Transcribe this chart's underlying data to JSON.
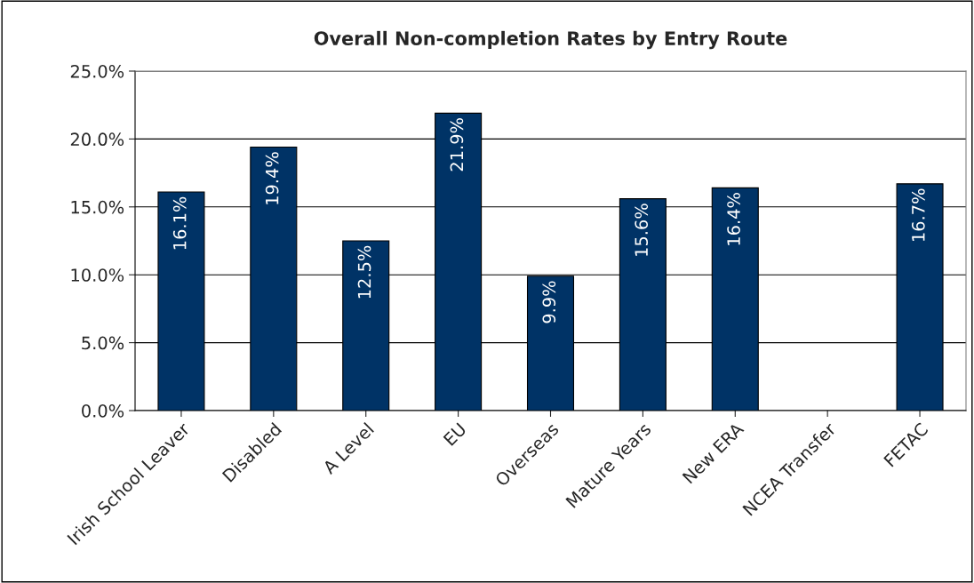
{
  "chart_data": {
    "type": "bar",
    "title": "Overall Non-completion Rates by Entry Route",
    "categories": [
      "Irish School Leaver",
      "Disabled",
      "A Level",
      "EU",
      "Overseas",
      "Mature Years",
      "New ERA",
      "NCEA Transfer",
      "FETAC"
    ],
    "values": [
      16.1,
      19.4,
      12.5,
      21.9,
      9.9,
      15.6,
      16.4,
      null,
      16.7
    ],
    "value_labels": [
      "16.1%",
      "19.4%",
      "12.5%",
      "21.9%",
      "9.9%",
      "15.6%",
      "16.4%",
      null,
      "16.7%"
    ],
    "color": "#003366",
    "ylim": [
      0,
      25
    ],
    "yticks": [
      {
        "value": 0,
        "label": "0.0%"
      },
      {
        "value": 5,
        "label": "5.0%"
      },
      {
        "value": 10,
        "label": "10.0%"
      },
      {
        "value": 15,
        "label": "15.0%"
      },
      {
        "value": 20,
        "label": "20.0%"
      },
      {
        "value": 25,
        "label": "25.0%"
      }
    ],
    "grid": "y",
    "legend": false
  }
}
